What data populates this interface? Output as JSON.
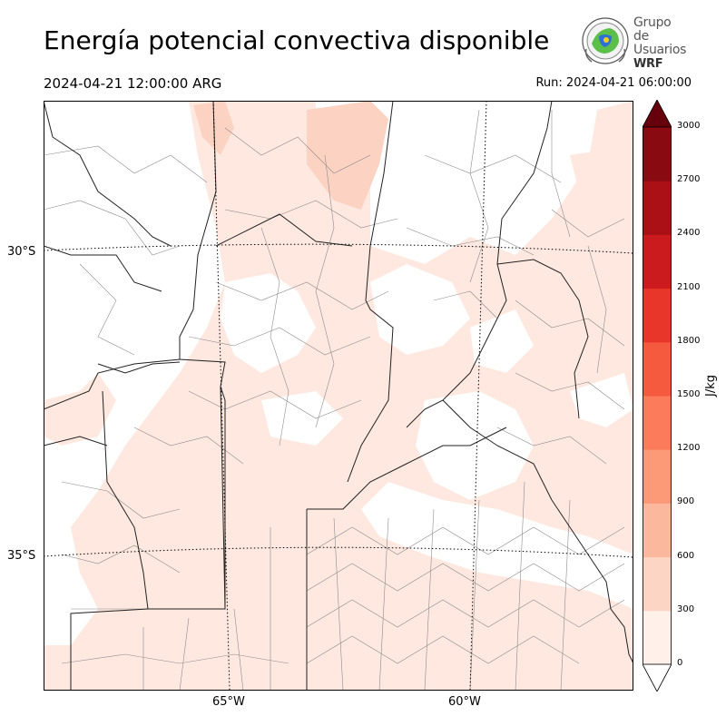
{
  "header": {
    "title": "Energía potencial convectiva disponible",
    "valid_time": "2024-04-21 12:00:00 ARG",
    "run_time": "Run: 2024-04-21 06:00:00"
  },
  "logo": {
    "line1": "Grupo de",
    "line2": "Usuarios",
    "line3": "WRF"
  },
  "map": {
    "lat_labels": [
      "30°S",
      "35°S"
    ],
    "lon_labels": [
      "65°W",
      "60°W"
    ],
    "field_colors": {
      "lightest": "#fee8df",
      "light": "#fcd2c2",
      "boundary": "#000000"
    }
  },
  "colorbar": {
    "unit": "J/kg",
    "levels": [
      0,
      300,
      600,
      900,
      1200,
      1500,
      1800,
      2100,
      2400,
      2700,
      3000
    ],
    "tick_labels": [
      "0",
      "300",
      "600",
      "900",
      "1200",
      "1500",
      "1800",
      "2100",
      "2400",
      "2700",
      "3000"
    ],
    "colors": [
      "#fff0ea",
      "#fdd5c4",
      "#fcb89c",
      "#fc9a78",
      "#fb7b5b",
      "#f5593e",
      "#e8372a",
      "#cc1b1f",
      "#ab1016",
      "#8a0a12"
    ],
    "over_color": "#67000d",
    "under_color": "#ffffff"
  }
}
